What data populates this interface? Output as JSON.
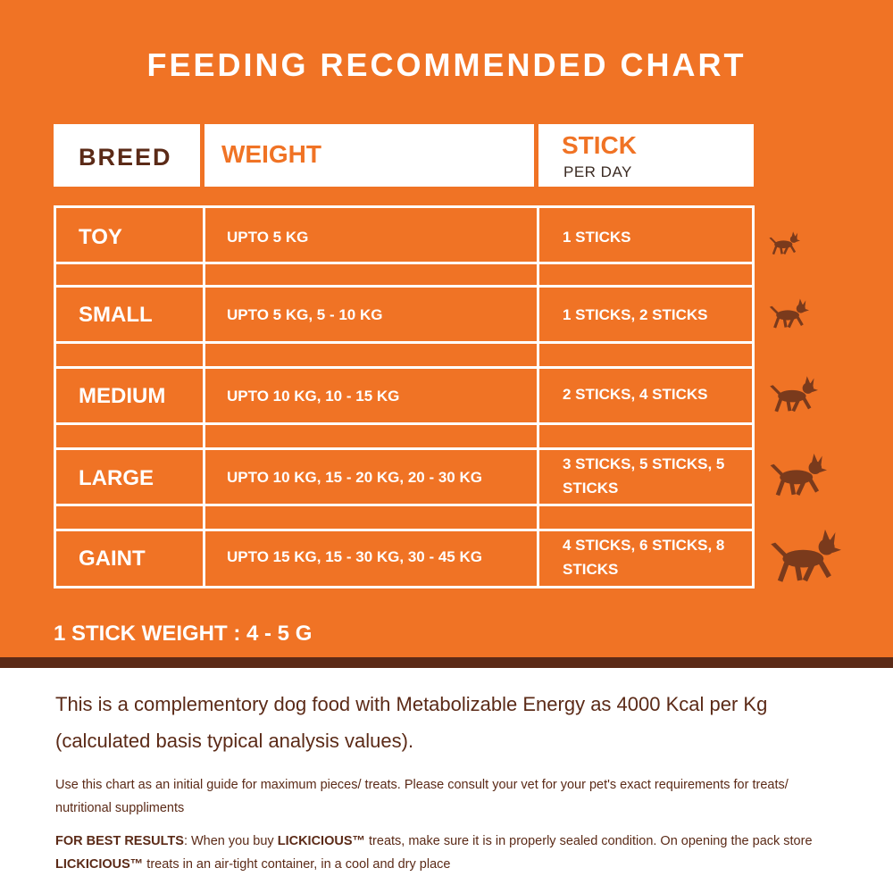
{
  "title": "FEEDING RECOMMENDED CHART",
  "header": {
    "breed": "BREED",
    "weight": "WEIGHT",
    "stick": "STICK",
    "per_day": "PER DAY"
  },
  "rows": [
    {
      "breed": "TOY",
      "weight": "UPTO 5 KG",
      "sticks": "1 STICKS",
      "icon": "dog-icon-toy"
    },
    {
      "breed": "SMALL",
      "weight": "UPTO 5 KG, 5 - 10 KG",
      "sticks": "1 STICKS, 2 STICKS",
      "icon": "dog-icon-small"
    },
    {
      "breed": "MEDIUM",
      "weight": "UPTO 10 KG, 10 - 15 KG",
      "sticks": "2 STICKS, 4 STICKS",
      "icon": "dog-icon-medium"
    },
    {
      "breed": "LARGE",
      "weight": "UPTO 10 KG, 15 - 20 KG, 20 - 30 KG",
      "sticks": "3 STICKS, 5 STICKS, 5 STICKS",
      "icon": "dog-icon-large"
    },
    {
      "breed": "GAINT",
      "weight": "UPTO 15 KG, 15 - 30 KG, 30 - 45 KG",
      "sticks": "4 STICKS, 6 STICKS, 8 STICKS",
      "icon": "dog-icon-giant"
    }
  ],
  "stick_weight": "1 STICK WEIGHT : 4 - 5 G",
  "description": "This is a complementory dog food with Metabolizable Energy as 4000 Kcal per Kg (calculated basis typical analysis values).",
  "guide": "Use this chart as an initial guide for maximum pieces/ treats. Please consult your vet for your pet's exact requirements for treats/ nutritional suppliments",
  "best_results": {
    "label": "FOR BEST RESULTS",
    "part1": ": When you buy ",
    "brand": "LICKICIOUS™",
    "part2": " treats, make sure it is in properly sealed condition. On opening the pack store ",
    "part3": " treats in an air-tight container, in a cool and dry place"
  },
  "colors": {
    "orange": "#f07325",
    "brown": "#5b2a17",
    "white": "#ffffff"
  }
}
